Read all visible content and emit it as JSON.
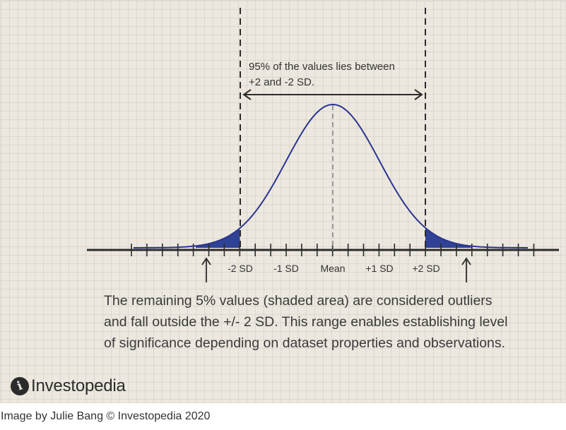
{
  "diagram": {
    "annotation_line1": "95% of the values lies between",
    "annotation_line2": "+2 and -2 SD.",
    "axis_labels": [
      "-2 SD",
      "-1 SD",
      "Mean",
      "+1 SD",
      "+2 SD"
    ],
    "note_lines": [
      "The remaining 5% values (shaded area) are considered outliers",
      "and fall outside the +/- 2 SD. This range enables establishing level",
      "of significance depending on dataset properties and observations."
    ],
    "curve_color": "#2a3590",
    "shade_color": "#2f4296"
  },
  "logo": {
    "text": "Investopedia",
    "mark": "i"
  },
  "caption": "Image by Julie Bang © Investopedia 2020"
}
